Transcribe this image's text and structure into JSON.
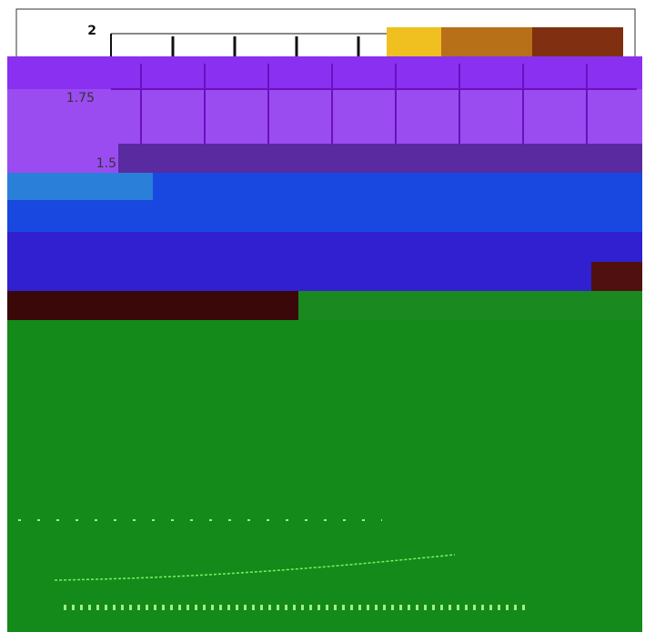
{
  "axis": {
    "tick_labels": [
      "2",
      "1.75",
      "1.5"
    ]
  }
}
